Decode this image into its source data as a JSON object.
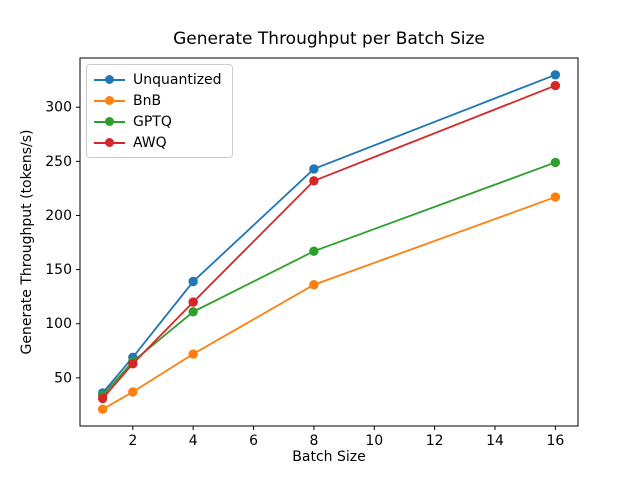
{
  "chart_data": {
    "type": "line",
    "title": "Generate Throughput per Batch Size",
    "xlabel": "Batch Size",
    "ylabel": "Generate Throughput (tokens/s)",
    "x": [
      1,
      2,
      4,
      8,
      16
    ],
    "series": [
      {
        "name": "Unquantized",
        "color": "#1f77b4",
        "values": [
          36,
          69,
          139,
          243,
          330
        ]
      },
      {
        "name": "BnB",
        "color": "#ff7f0e",
        "values": [
          21,
          37,
          72,
          136,
          217
        ]
      },
      {
        "name": "GPTQ",
        "color": "#2ca02c",
        "values": [
          34,
          65,
          111,
          167,
          249
        ]
      },
      {
        "name": "AWQ",
        "color": "#d62728",
        "values": [
          31,
          63,
          120,
          232,
          320
        ]
      }
    ],
    "xlim": [
      0.25,
      16.75
    ],
    "ylim": [
      5.5,
      345.5
    ],
    "xticks": [
      2,
      4,
      6,
      8,
      10,
      12,
      14,
      16
    ],
    "yticks": [
      50,
      100,
      150,
      200,
      250,
      300
    ],
    "grid": false,
    "legend_position": "upper left",
    "marker": "circle",
    "axis_color": "#000000",
    "background_color": "#ffffff"
  }
}
